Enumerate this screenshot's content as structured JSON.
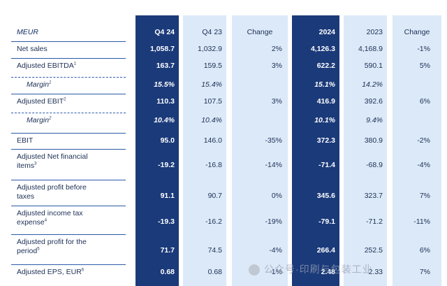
{
  "header": {
    "label": "MEUR",
    "q4_24": "Q4 24",
    "q4_23": "Q4 23",
    "change_q": "Change",
    "y2024": "2024",
    "y2023": "2023",
    "change_y": "Change"
  },
  "rows": [
    {
      "label": "Net sales",
      "sup": "",
      "q4_24": "1,058.7",
      "q4_23": "1,032.9",
      "chg_q": "2%",
      "y2024": "4,126.3",
      "y2023": "4,168.9",
      "chg_y": "-1%"
    },
    {
      "label": "Adjusted EBITDA",
      "sup": "1",
      "q4_24": "163.7",
      "q4_23": "159.5",
      "chg_q": "3%",
      "y2024": "622.2",
      "y2023": "590.1",
      "chg_y": "5%"
    },
    {
      "label": "Margin",
      "sup": "1",
      "q4_24": "15.5%",
      "q4_23": "15.4%",
      "chg_q": "",
      "y2024": "15.1%",
      "y2023": "14.2%",
      "chg_y": ""
    },
    {
      "label": "Adjusted EBIT",
      "sup": "2",
      "q4_24": "110.3",
      "q4_23": "107.5",
      "chg_q": "3%",
      "y2024": "416.9",
      "y2023": "392.6",
      "chg_y": "6%"
    },
    {
      "label": "Margin",
      "sup": "2",
      "q4_24": "10.4%",
      "q4_23": "10.4%",
      "chg_q": "",
      "y2024": "10.1%",
      "y2023": "9.4%",
      "chg_y": ""
    },
    {
      "label": "EBIT",
      "sup": "",
      "q4_24": "95.0",
      "q4_23": "146.0",
      "chg_q": "-35%",
      "y2024": "372.3",
      "y2023": "380.9",
      "chg_y": "-2%"
    },
    {
      "label": "Adjusted Net financial items",
      "sup": "3",
      "q4_24": "-19.2",
      "q4_23": "-16.8",
      "chg_q": "-14%",
      "y2024": "-71.4",
      "y2023": "-68.9",
      "chg_y": "-4%"
    },
    {
      "label": "Adjusted profit before taxes",
      "sup": "",
      "q4_24": "91.1",
      "q4_23": "90.7",
      "chg_q": "0%",
      "y2024": "345.6",
      "y2023": "323.7",
      "chg_y": "7%"
    },
    {
      "label": "Adjusted income tax expense",
      "sup": "4",
      "q4_24": "-19.3",
      "q4_23": "-16.2",
      "chg_q": "-19%",
      "y2024": "-79.1",
      "y2023": "-71.2",
      "chg_y": "-11%"
    },
    {
      "label": "Adjusted profit for the period",
      "sup": "5",
      "q4_24": "71.7",
      "q4_23": "74.5",
      "chg_q": "-4%",
      "y2024": "266.4",
      "y2023": "252.5",
      "chg_y": "6%"
    },
    {
      "label": "Adjusted EPS, EUR",
      "sup": "6",
      "q4_24": "0.68",
      "q4_23": "0.68",
      "chg_q": "-1%",
      "y2024": "2.48",
      "y2023": "2.33",
      "chg_y": "7%"
    }
  ],
  "watermark": "公众号·印刷与包装工业"
}
